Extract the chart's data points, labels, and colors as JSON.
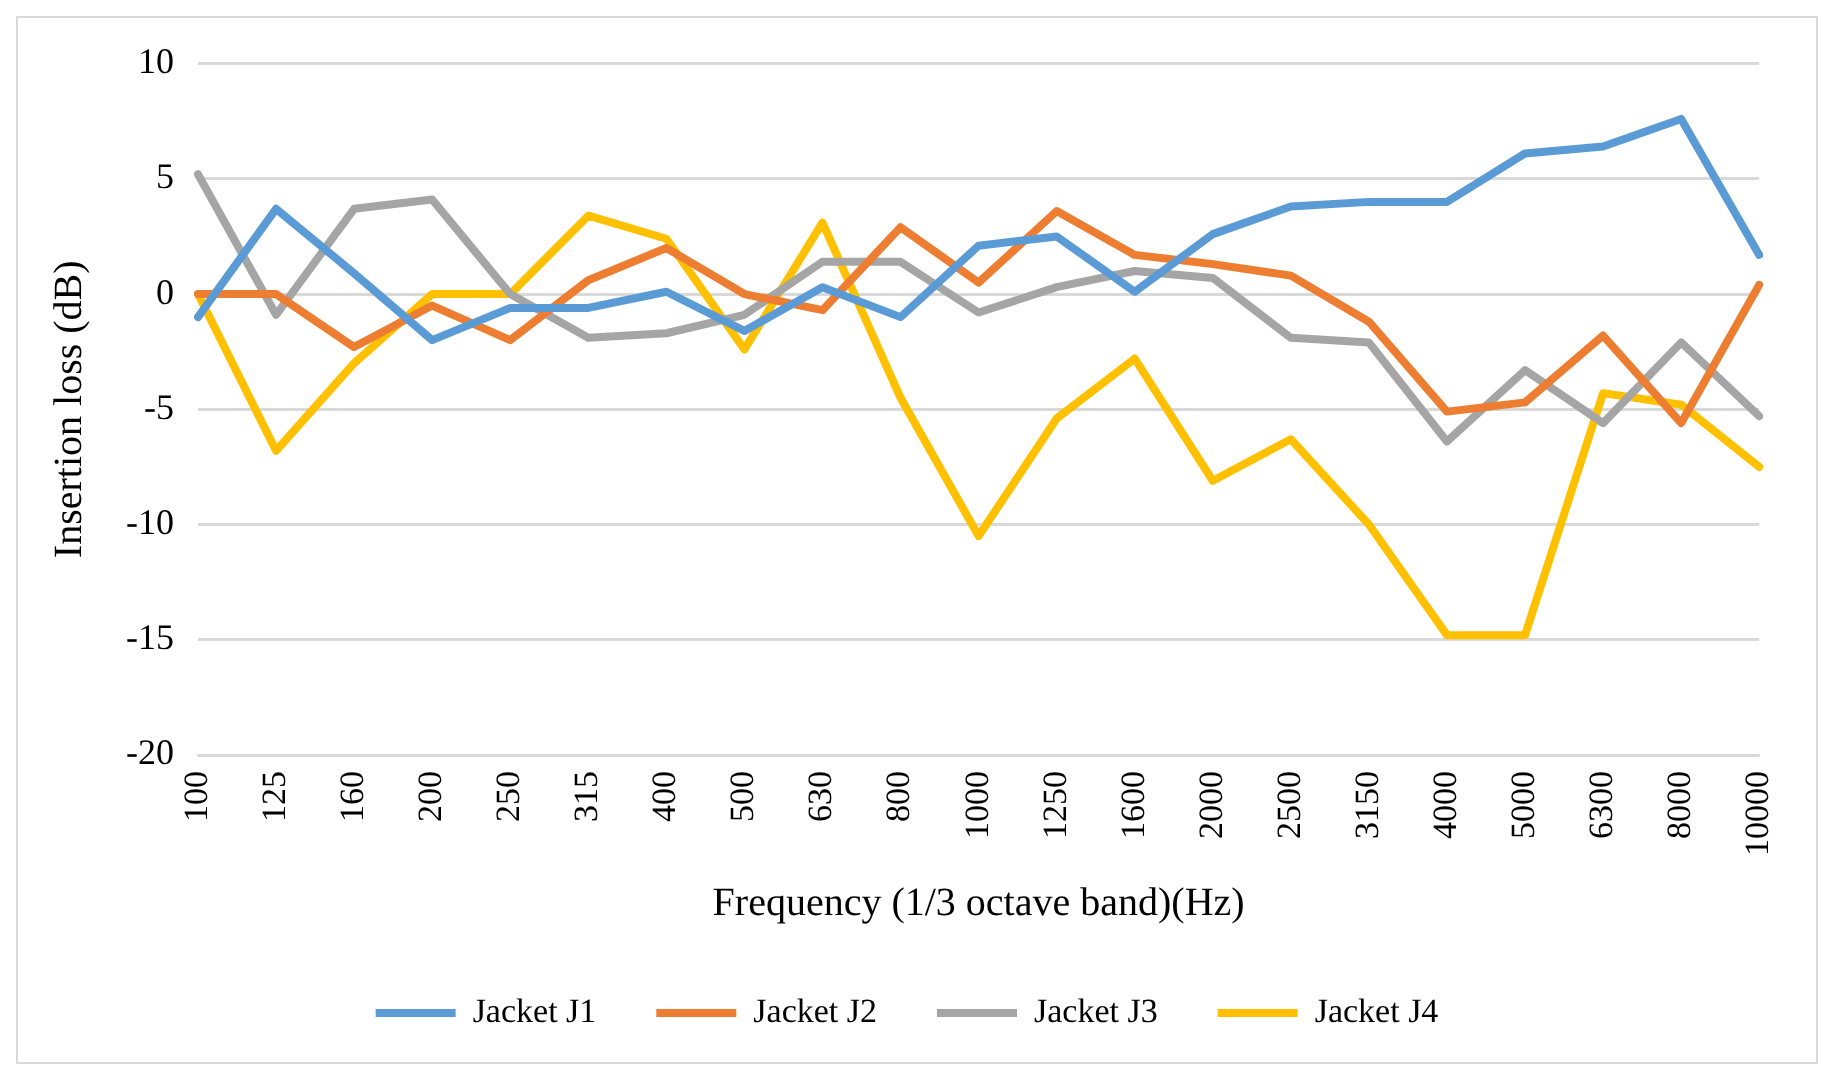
{
  "chart_data": {
    "type": "line",
    "xlabel": "Frequency (1/3 octave band)(Hz)",
    "ylabel": "Insertion loss (dB)",
    "categories": [
      "100",
      "125",
      "160",
      "200",
      "250",
      "315",
      "400",
      "500",
      "630",
      "800",
      "1000",
      "1250",
      "1600",
      "2000",
      "2500",
      "3150",
      "4000",
      "5000",
      "6300",
      "8000",
      "10000"
    ],
    "series": [
      {
        "name": "Jacket J1",
        "color": "#5b9bd5",
        "values": [
          -1,
          3.7,
          0.9,
          -2,
          -0.6,
          -0.6,
          0.1,
          -1.6,
          0.3,
          -1,
          2.1,
          2.5,
          0.1,
          2.6,
          3.8,
          4,
          4,
          6.1,
          6.4,
          7.6,
          1.7
        ]
      },
      {
        "name": "Jacket J2",
        "color": "#ed7d31",
        "values": [
          0,
          0,
          -2.3,
          -0.5,
          -2,
          0.6,
          2,
          0,
          -0.7,
          2.9,
          0.5,
          3.6,
          1.7,
          1.3,
          0.8,
          -1.2,
          -5.1,
          -4.7,
          -1.8,
          -5.6,
          0.4
        ]
      },
      {
        "name": "Jacket J3",
        "color": "#a5a5a5",
        "values": [
          5.2,
          -0.9,
          3.7,
          4.1,
          0,
          -1.9,
          -1.7,
          -0.9,
          1.4,
          1.4,
          -0.8,
          0.3,
          1,
          0.7,
          -1.9,
          -2.1,
          -6.4,
          -3.3,
          -5.6,
          -2.1,
          -5.3
        ]
      },
      {
        "name": "Jacket J4",
        "color": "#ffc000",
        "values": [
          0,
          -6.8,
          -3,
          0,
          0,
          3.4,
          2.4,
          -2.4,
          3.1,
          -4.5,
          -10.5,
          -5.4,
          -2.8,
          -8.1,
          -6.3,
          -10,
          -14.8,
          -14.8,
          -4.3,
          -4.8,
          -7.5
        ]
      }
    ],
    "ylim": [
      -20,
      10
    ],
    "yticks": [
      -20,
      -15,
      -10,
      -5,
      0,
      5,
      10
    ],
    "grid": "y",
    "legend": "bottom",
    "marker": "none",
    "line_style": "solid"
  }
}
